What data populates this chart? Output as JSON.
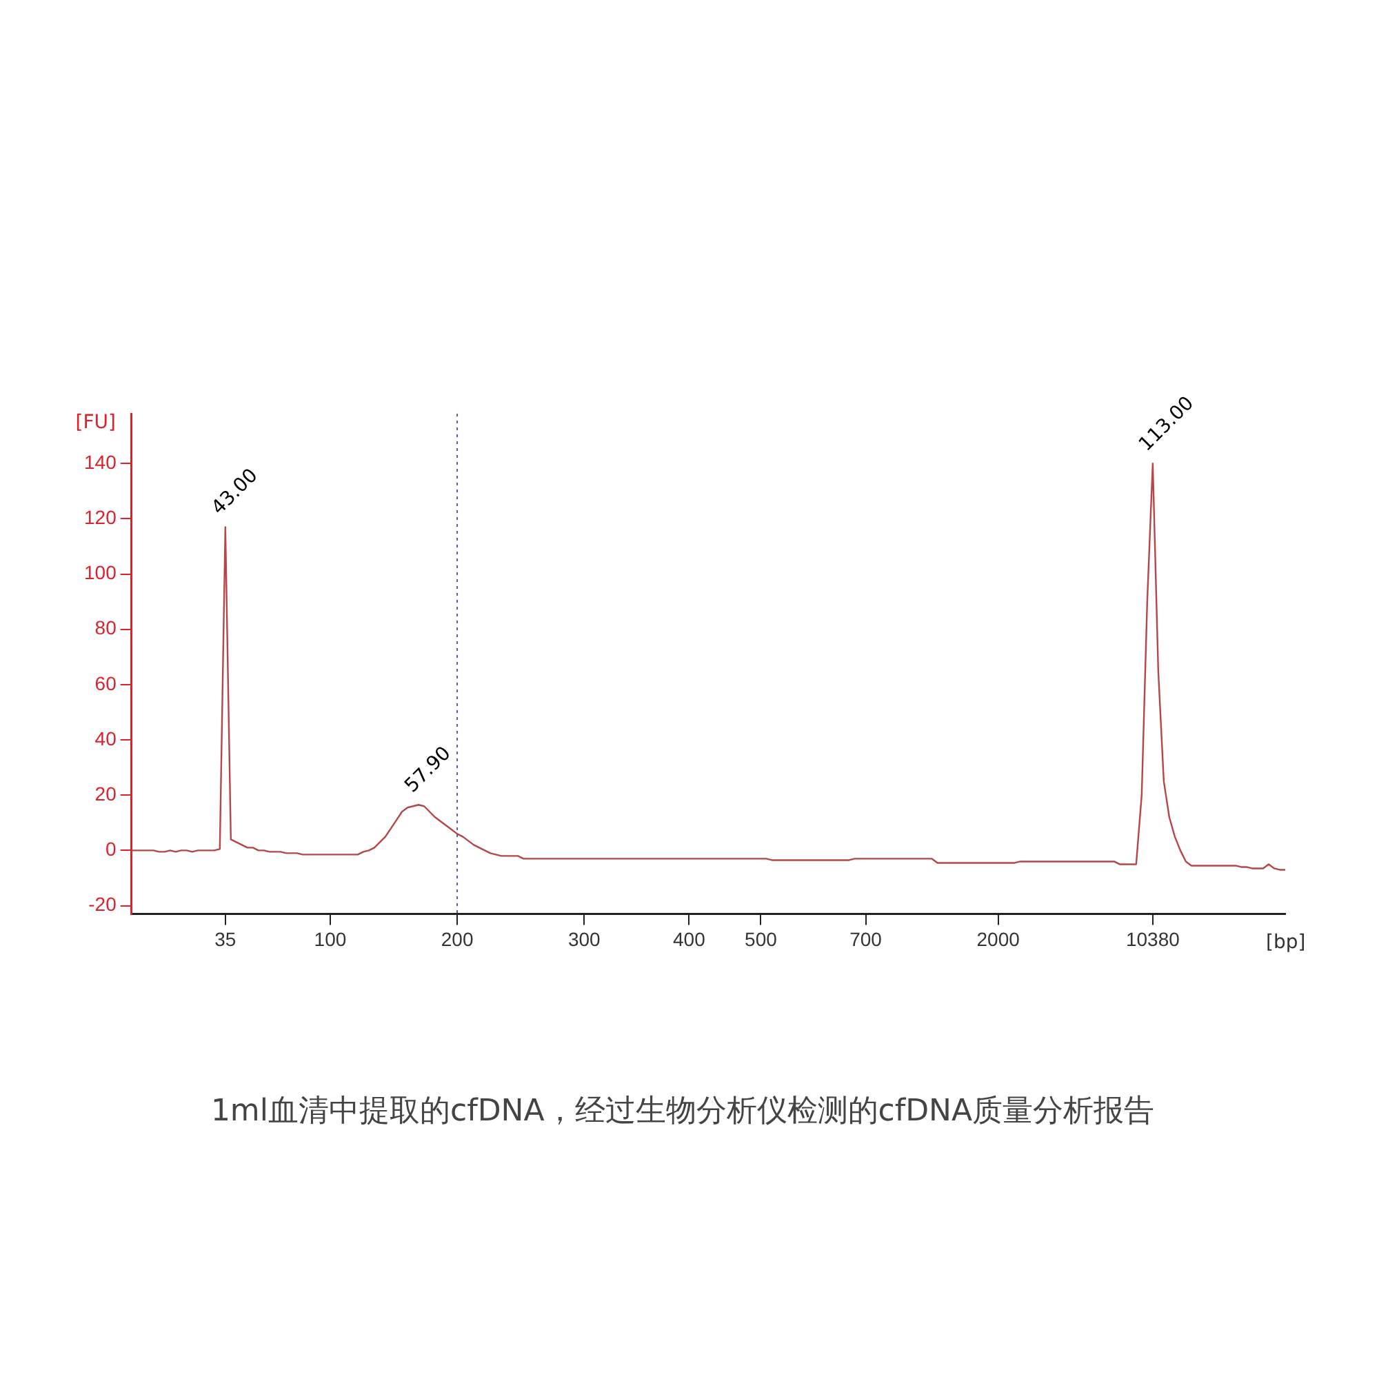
{
  "chart_data": {
    "type": "line",
    "title": "1ml血清中提取的cfDNA，经过生物分析仪检测的cfDNA质量分析报告",
    "xlabel": "[bp]",
    "ylabel": "[FU]",
    "categories": [
      null,
      null,
      null,
      null,
      null,
      null,
      null,
      null,
      null,
      null,
      null,
      null,
      null,
      null,
      null,
      null,
      null,
      "35",
      null,
      null,
      null,
      null,
      null,
      null,
      null,
      null,
      null,
      null,
      null,
      null,
      null,
      null,
      null,
      null,
      null,
      null,
      "100",
      null,
      null,
      null,
      null,
      null,
      null,
      null,
      null,
      null,
      null,
      null,
      null,
      null,
      null,
      null,
      null,
      null,
      null,
      null,
      null,
      null,
      null,
      "200",
      null,
      null,
      null,
      null,
      null,
      null,
      null,
      null,
      null,
      null,
      null,
      null,
      null,
      null,
      null,
      null,
      null,
      null,
      null,
      null,
      null,
      null,
      "300",
      null,
      null,
      null,
      null,
      null,
      null,
      null,
      null,
      null,
      null,
      null,
      null,
      null,
      null,
      null,
      null,
      null,
      null,
      "400",
      null,
      null,
      null,
      null,
      null,
      null,
      null,
      null,
      null,
      null,
      null,
      null,
      "500",
      null,
      null,
      null,
      null,
      null,
      null,
      null,
      null,
      null,
      null,
      null,
      null,
      null,
      null,
      null,
      null,
      null,
      null,
      "700",
      null,
      null,
      null,
      null,
      null,
      null,
      null,
      null,
      null,
      null,
      null,
      null,
      null,
      null,
      null,
      null,
      null,
      null,
      null,
      null,
      null,
      null,
      null,
      "2000",
      null,
      null,
      null,
      null,
      null,
      null,
      null,
      null,
      null,
      null,
      null,
      null,
      null,
      null,
      null,
      null,
      null,
      null,
      null,
      null,
      null,
      null,
      null,
      null,
      null,
      null,
      null,
      "10380",
      null,
      null,
      null,
      null,
      null,
      null,
      null,
      null,
      null,
      null,
      null,
      null,
      null,
      null,
      null,
      null,
      null,
      null,
      null,
      null,
      null,
      null,
      null,
      null
    ],
    "series": [
      {
        "color": "#b5474b",
        "values": [
          0,
          0,
          0,
          0,
          0,
          -0.5,
          -0.5,
          0,
          -0.5,
          0,
          0,
          -0.5,
          0,
          0,
          0,
          0,
          0.5,
          117,
          4,
          3,
          2,
          1,
          1,
          0,
          0,
          -0.5,
          -0.5,
          -0.5,
          -1,
          -1,
          -1,
          -1.5,
          -1.5,
          -1.5,
          -1.5,
          -1.5,
          -1.5,
          -1.5,
          -1.5,
          -1.5,
          -1.5,
          -1.5,
          -0.5,
          0,
          1,
          3,
          5,
          8,
          11,
          14,
          15.5,
          16,
          16.5,
          16,
          14,
          12,
          10.5,
          9,
          7.5,
          6,
          5,
          3.5,
          2,
          1,
          0,
          -1,
          -1.5,
          -2,
          -2,
          -2,
          -2,
          -3,
          -3,
          -3,
          -3,
          -3,
          -3,
          -3,
          -3,
          -3,
          -3,
          -3,
          -3,
          -3,
          -3,
          -3,
          -3,
          -3,
          -3,
          -3,
          -3,
          -3,
          -3,
          -3,
          -3,
          -3,
          -3,
          -3,
          -3,
          -3,
          -3,
          -3,
          -3,
          -3,
          -3,
          -3,
          -3,
          -3,
          -3,
          -3,
          -3,
          -3,
          -3,
          -3,
          -3,
          -3,
          -3.5,
          -3.5,
          -3.5,
          -3.5,
          -3.5,
          -3.5,
          -3.5,
          -3.5,
          -3.5,
          -3.5,
          -3.5,
          -3.5,
          -3.5,
          -3.5,
          -3.5,
          -3,
          -3,
          -3,
          -3,
          -3,
          -3,
          -3,
          -3,
          -3,
          -3,
          -3,
          -3,
          -3,
          -3,
          -3,
          -4.5,
          -4.5,
          -4.5,
          -4.5,
          -4.5,
          -4.5,
          -4.5,
          -4.5,
          -4.5,
          -4.5,
          -4.5,
          -4.5,
          -4.5,
          -4.5,
          -4.5,
          -4,
          -4,
          -4,
          -4,
          -4,
          -4,
          -4,
          -4,
          -4,
          -4,
          -4,
          -4,
          -4,
          -4,
          -4,
          -4,
          -4,
          -4,
          -5,
          -5,
          -5,
          -5,
          20,
          90,
          140,
          65,
          25,
          12,
          5,
          0,
          -4,
          -5.5,
          -5.5,
          -5.5,
          -5.5,
          -5.5,
          -5.5,
          -5.5,
          -5.5,
          -5.5,
          -6,
          -6,
          -6.5,
          -6.5,
          -6.5,
          -5,
          -6.5,
          -7,
          -7
        ]
      }
    ],
    "annotations": [
      {
        "text": "43.00",
        "x": "35",
        "y": 117
      },
      {
        "text": "57.90",
        "y": 16.5
      },
      {
        "text": "113.00",
        "x": "10380",
        "y": 140
      }
    ],
    "ylim": [
      -23,
      158
    ],
    "yticks": [
      -20,
      0,
      20,
      40,
      60,
      80,
      100,
      120,
      140
    ],
    "grid": false,
    "marker": "none",
    "line_style": "solid",
    "ref_lines": [
      {
        "axis": "x",
        "value": "200",
        "color": "#5a5a9a",
        "line_style": "dotted"
      }
    ]
  }
}
